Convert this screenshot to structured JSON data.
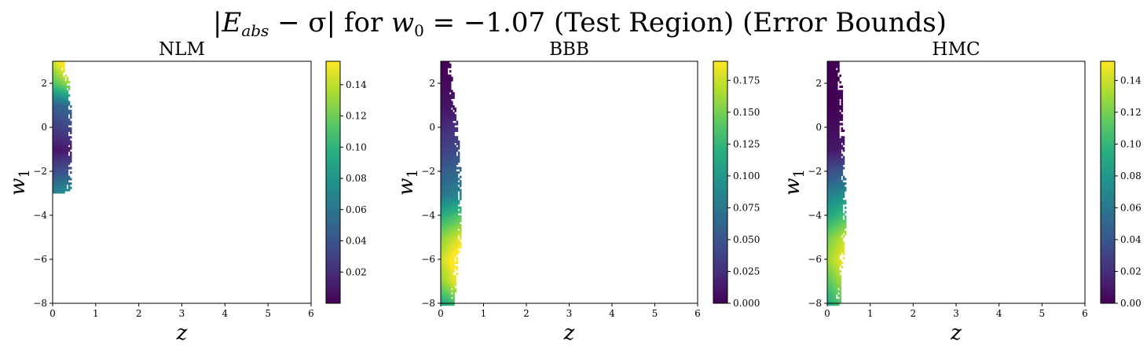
{
  "figure": {
    "title": "|E_abs − σ| for w₀ = −1.07 (Test Region) (Error Bounds)",
    "title_parts": {
      "lhs": "|E",
      "sub": "abs",
      "mid": " − σ| for ",
      "w": "w",
      "wsub": "0",
      "rhs": " = −1.07 (Test Region) (Error Bounds)"
    }
  },
  "chart_data": [
    {
      "type": "heatmap",
      "title": "NLM",
      "xlabel": "z",
      "ylabel": "w",
      "ylabel_sub": "1",
      "xlim": [
        0,
        6
      ],
      "ylim": [
        -8,
        3
      ],
      "xticks": [
        "0",
        "1",
        "2",
        "3",
        "4",
        "5",
        "6"
      ],
      "yticks": [
        "−8",
        "−6",
        "−4",
        "−2",
        "0",
        "2"
      ],
      "colormap": "viridis",
      "colorbar": {
        "min": 0.0,
        "max": 0.155,
        "ticks": [
          "0.02",
          "0.04",
          "0.06",
          "0.08",
          "0.10",
          "0.12",
          "0.14"
        ],
        "tick_values": [
          0.02,
          0.04,
          0.06,
          0.08,
          0.1,
          0.12,
          0.14
        ]
      },
      "region": [
        [
          3.0,
          0.26
        ],
        [
          2.5,
          0.3
        ],
        [
          2.0,
          0.38
        ],
        [
          1.0,
          0.42
        ],
        [
          0.0,
          0.42
        ],
        [
          -1.0,
          0.42
        ],
        [
          -2.0,
          0.42
        ],
        [
          -2.8,
          0.4
        ],
        [
          -2.95,
          0.18
        ]
      ],
      "value_profile": [
        [
          3.0,
          0.155
        ],
        [
          2.0,
          0.12
        ],
        [
          1.0,
          0.05
        ],
        [
          0.0,
          0.03
        ],
        [
          -1.0,
          0.01
        ],
        [
          -2.0,
          0.04
        ],
        [
          -2.8,
          0.07
        ]
      ]
    },
    {
      "type": "heatmap",
      "title": "BBB",
      "xlabel": "z",
      "ylabel": "w",
      "ylabel_sub": "1",
      "xlim": [
        0,
        6
      ],
      "ylim": [
        -8,
        3
      ],
      "xticks": [
        "0",
        "1",
        "2",
        "3",
        "4",
        "5",
        "6"
      ],
      "yticks": [
        "−8",
        "−6",
        "−4",
        "−2",
        "0",
        "2"
      ],
      "colormap": "viridis",
      "colorbar": {
        "min": 0.0,
        "max": 0.19,
        "ticks": [
          "0.000",
          "0.025",
          "0.050",
          "0.075",
          "0.100",
          "0.125",
          "0.150",
          "0.175"
        ],
        "tick_values": [
          0.0,
          0.025,
          0.05,
          0.075,
          0.1,
          0.125,
          0.15,
          0.175
        ]
      },
      "region": [
        [
          3.0,
          0.2
        ],
        [
          2.0,
          0.26
        ],
        [
          1.0,
          0.32
        ],
        [
          0.0,
          0.38
        ],
        [
          -1.0,
          0.42
        ],
        [
          -2.0,
          0.45
        ],
        [
          -3.0,
          0.46
        ],
        [
          -4.0,
          0.48
        ],
        [
          -5.0,
          0.48
        ],
        [
          -6.0,
          0.4
        ],
        [
          -7.0,
          0.34
        ],
        [
          -8.0,
          0.3
        ]
      ],
      "value_profile": [
        [
          3.0,
          0.0
        ],
        [
          1.0,
          0.01
        ],
        [
          -1.0,
          0.04
        ],
        [
          -2.0,
          0.06
        ],
        [
          -3.0,
          0.08
        ],
        [
          -4.0,
          0.13
        ],
        [
          -5.0,
          0.17
        ],
        [
          -6.0,
          0.19
        ],
        [
          -7.0,
          0.17
        ],
        [
          -8.0,
          0.12
        ]
      ]
    },
    {
      "type": "heatmap",
      "title": "HMC",
      "xlabel": "z",
      "ylabel": "w",
      "ylabel_sub": "1",
      "xlim": [
        0,
        6
      ],
      "ylim": [
        -8,
        3
      ],
      "xticks": [
        "0",
        "1",
        "2",
        "3",
        "4",
        "5",
        "6"
      ],
      "yticks": [
        "−8",
        "−6",
        "−4",
        "−2",
        "0",
        "2"
      ],
      "colormap": "viridis",
      "colorbar": {
        "min": 0.0,
        "max": 0.152,
        "ticks": [
          "0.00",
          "0.02",
          "0.04",
          "0.06",
          "0.08",
          "0.10",
          "0.12",
          "0.14"
        ],
        "tick_values": [
          0.0,
          0.02,
          0.04,
          0.06,
          0.08,
          0.1,
          0.12,
          0.14
        ]
      },
      "region": [
        [
          3.0,
          0.26
        ],
        [
          2.0,
          0.32
        ],
        [
          1.0,
          0.34
        ],
        [
          0.0,
          0.36
        ],
        [
          -1.0,
          0.38
        ],
        [
          -2.0,
          0.4
        ],
        [
          -3.0,
          0.42
        ],
        [
          -4.0,
          0.44
        ],
        [
          -5.0,
          0.4
        ],
        [
          -6.0,
          0.36
        ],
        [
          -7.0,
          0.3
        ],
        [
          -8.0,
          0.28
        ]
      ],
      "value_profile": [
        [
          3.0,
          0.0
        ],
        [
          1.0,
          0.0
        ],
        [
          -1.0,
          0.01
        ],
        [
          -2.0,
          0.04
        ],
        [
          -3.0,
          0.07
        ],
        [
          -4.0,
          0.1
        ],
        [
          -5.0,
          0.13
        ],
        [
          -6.0,
          0.14
        ],
        [
          -7.0,
          0.12
        ],
        [
          -8.0,
          0.1
        ]
      ]
    }
  ]
}
